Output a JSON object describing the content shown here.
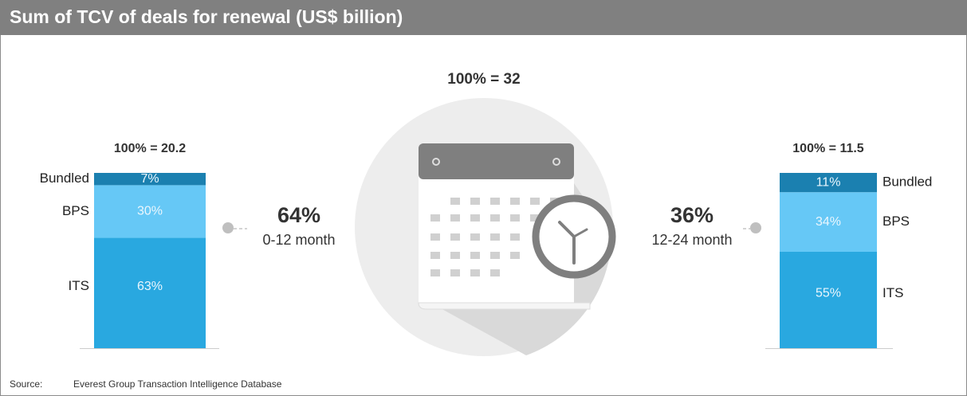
{
  "title": "Sum of TCV of deals for renewal (US$ billion)",
  "total_label": "100% = 32",
  "source_label": "Source:",
  "source": "Everest Group Transaction Intelligence Database",
  "chart_data": [
    {
      "type": "stacked_bar",
      "total_label": "100% = 20.2",
      "share_label": "64%",
      "period": "0-12 month",
      "legend_side": "left",
      "ylim": [
        0,
        100
      ],
      "series": [
        {
          "name": "ITS",
          "color": "#29a8e0",
          "values": [
            63
          ],
          "value_labels": [
            "63%"
          ]
        },
        {
          "name": "BPS",
          "color": "#66c8f6",
          "values": [
            30
          ],
          "value_labels": [
            "30%"
          ]
        },
        {
          "name": "Bundled",
          "color": "#1b80b0",
          "values": [
            7
          ],
          "value_labels": [
            "7%"
          ]
        }
      ]
    },
    {
      "type": "stacked_bar",
      "total_label": "100% = 11.5",
      "share_label": "36%",
      "period": "12-24 month",
      "legend_side": "right",
      "ylim": [
        0,
        100
      ],
      "series": [
        {
          "name": "ITS",
          "color": "#29a8e0",
          "values": [
            55
          ],
          "value_labels": [
            "55%"
          ]
        },
        {
          "name": "BPS",
          "color": "#66c8f6",
          "values": [
            34
          ],
          "value_labels": [
            "34%"
          ]
        },
        {
          "name": "Bundled",
          "color": "#1b80b0",
          "values": [
            11
          ],
          "value_labels": [
            "11%"
          ]
        }
      ]
    }
  ]
}
